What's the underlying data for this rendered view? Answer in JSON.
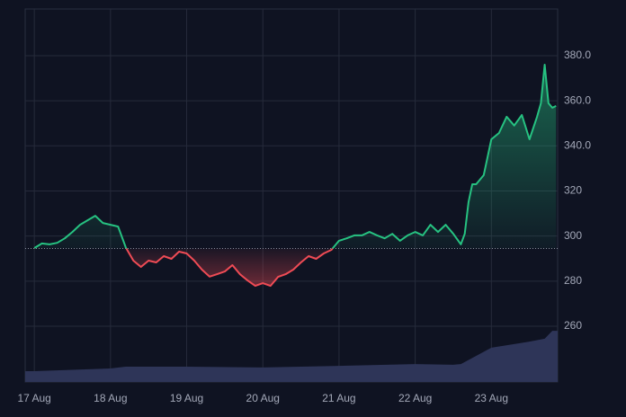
{
  "chart_data": {
    "type": "baseline",
    "x": [
      17.0,
      17.1,
      17.2,
      17.3,
      17.4,
      17.5,
      17.6,
      17.7,
      17.8,
      17.9,
      18.0,
      18.1,
      18.2,
      18.3,
      18.4,
      18.5,
      18.6,
      18.7,
      18.8,
      18.9,
      19.0,
      19.1,
      19.2,
      19.3,
      19.4,
      19.5,
      19.6,
      19.7,
      19.8,
      19.9,
      20.0,
      20.1,
      20.2,
      20.3,
      20.4,
      20.5,
      20.6,
      20.7,
      20.8,
      20.9,
      21.0,
      21.1,
      21.2,
      21.3,
      21.4,
      21.5,
      21.6,
      21.7,
      21.8,
      21.9,
      22.0,
      22.1,
      22.2,
      22.3,
      22.4,
      22.5,
      22.6,
      22.65,
      22.7,
      22.75,
      22.8,
      22.9,
      23.0,
      23.1,
      23.2,
      23.3,
      23.4,
      23.5,
      23.6,
      23.65,
      23.7,
      23.75,
      23.8,
      23.85
    ],
    "series": [
      {
        "up_color": "#26c281",
        "down_color": "#ef4b55",
        "values": [
          294.7,
          296.7,
          296.3,
          297,
          299,
          301.8,
          305,
          307,
          309,
          305.8,
          305,
          304.2,
          295,
          289.1,
          286.3,
          289.1,
          288.3,
          291.1,
          289.9,
          293.1,
          292.3,
          289.1,
          285.1,
          282,
          283.1,
          284.3,
          287.1,
          283.1,
          280.3,
          277.9,
          279.1,
          277.9,
          281.9,
          283.1,
          285.1,
          288.3,
          291.1,
          289.9,
          292.3,
          293.9,
          297.9,
          299,
          300.3,
          300.3,
          301.8,
          300.3,
          299,
          301,
          297.9,
          300.3,
          301.8,
          300.3,
          305,
          301.8,
          305,
          301,
          296.3,
          301,
          315,
          323,
          323,
          327,
          342.9,
          345.7,
          352.9,
          349,
          353.7,
          342.9,
          352.9,
          358.9,
          376,
          358.9,
          356.9,
          357.7
        ]
      }
    ],
    "baseline": 294.5,
    "volume": {
      "axis": "y2",
      "color": "#2e3558",
      "x": [
        16.88,
        17.0,
        18.0,
        18.2,
        19.0,
        20.0,
        21.0,
        22.0,
        22.5,
        22.6,
        23.0,
        23.5,
        23.7,
        23.8,
        23.87
      ],
      "values": [
        2.9,
        2.9,
        3.6,
        4.1,
        4.1,
        3.9,
        4.3,
        4.8,
        4.6,
        4.8,
        9.2,
        10.8,
        11.6,
        13.7,
        13.7
      ]
    },
    "xlim": [
      16.88,
      23.87
    ],
    "xticks": [
      {
        "value": 17,
        "label": "17 Aug"
      },
      {
        "value": 18,
        "label": "18 Aug"
      },
      {
        "value": 19,
        "label": "19 Aug"
      },
      {
        "value": 20,
        "label": "20 Aug"
      },
      {
        "value": 21,
        "label": "21 Aug"
      },
      {
        "value": 22,
        "label": "22 Aug"
      },
      {
        "value": 23,
        "label": "23 Aug"
      }
    ],
    "ylim": [
      235.3,
      400.7
    ],
    "yticks": [
      260,
      280,
      300,
      {
        "value": 320,
        "label": "320"
      },
      {
        "value": 340,
        "label": "340.0"
      },
      {
        "value": 360,
        "label": "360.0"
      },
      {
        "value": 380,
        "label": "380.0"
      }
    ],
    "y2lim": [
      0,
      100
    ],
    "grid": true
  }
}
